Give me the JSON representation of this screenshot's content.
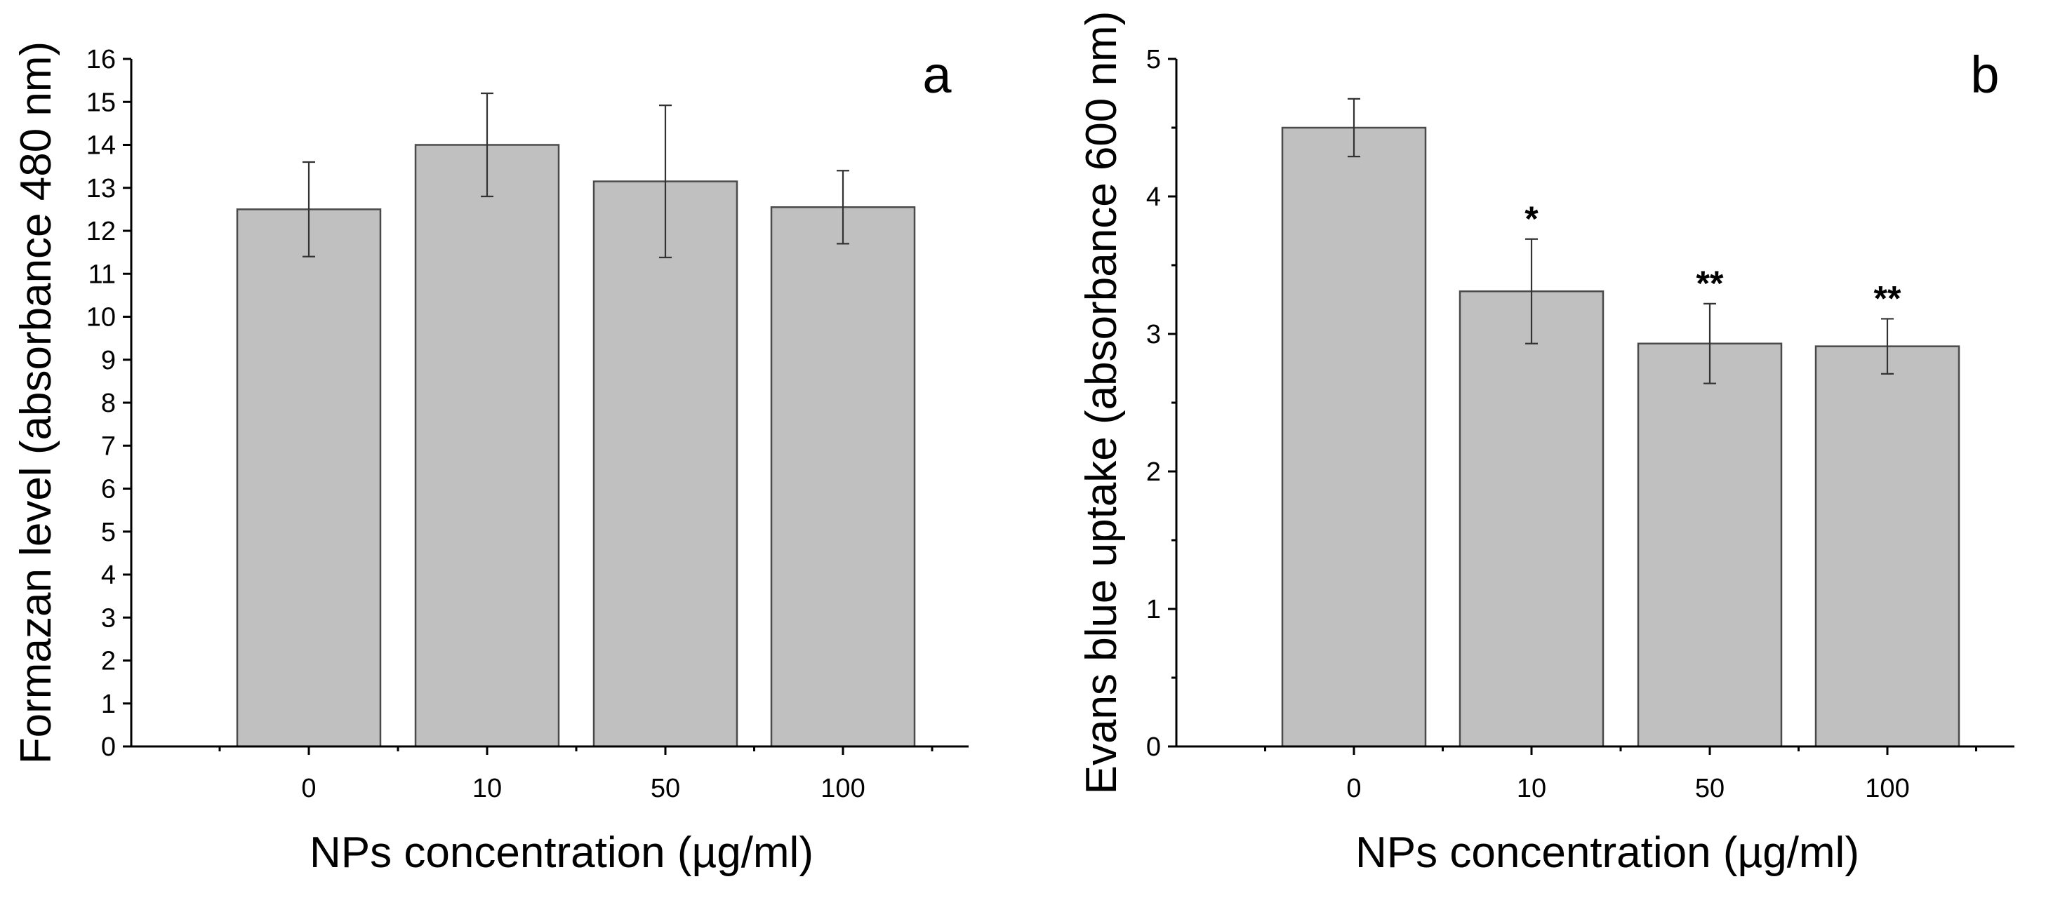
{
  "colors": {
    "bar_fill": "#c0c0c0",
    "bar_edge": "#4a4a4a",
    "axis": "#000000"
  },
  "chart_data": [
    {
      "type": "bar",
      "panel_label": "a",
      "title": "",
      "xlabel": "NPs concentration (µg/ml)",
      "ylabel": "Formazan level (absorbance 480 nm)",
      "categories": [
        "0",
        "10",
        "50",
        "100"
      ],
      "values": [
        12.5,
        14.0,
        13.15,
        12.55
      ],
      "errors": [
        1.1,
        1.2,
        1.77,
        0.85
      ],
      "annotations": [
        "",
        "",
        "",
        ""
      ],
      "ylim": [
        0,
        16
      ],
      "yticks": [
        0,
        1,
        2,
        3,
        4,
        5,
        6,
        7,
        8,
        9,
        10,
        11,
        12,
        13,
        14,
        15,
        16
      ],
      "yminor": [],
      "grid": false
    },
    {
      "type": "bar",
      "panel_label": "b",
      "title": "",
      "xlabel": "NPs concentration (µg/ml)",
      "ylabel": "Evans blue uptake (absorbance 600 nm)",
      "categories": [
        "0",
        "10",
        "50",
        "100"
      ],
      "values": [
        4.5,
        3.31,
        2.93,
        2.91
      ],
      "errors": [
        0.21,
        0.38,
        0.29,
        0.2
      ],
      "annotations": [
        "",
        "*",
        "**",
        "**"
      ],
      "ylim": [
        0,
        5
      ],
      "yticks": [
        0,
        1,
        2,
        3,
        4,
        5
      ],
      "yminor": [
        0.5,
        1.5,
        2.5,
        3.5,
        4.5
      ],
      "grid": false
    }
  ]
}
